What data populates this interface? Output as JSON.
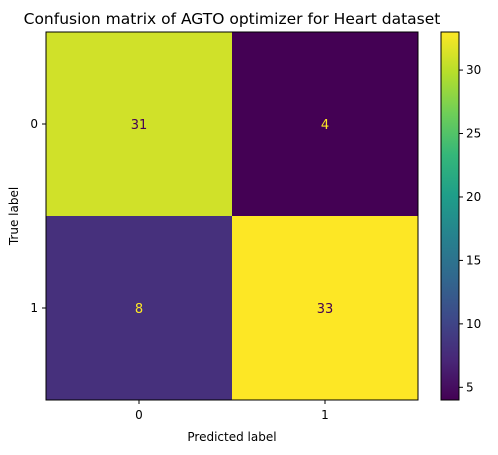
{
  "chart_data": {
    "type": "heatmap",
    "title": "Confusion matrix of AGTO optimizer for Heart dataset",
    "xlabel": "Predicted label",
    "ylabel": "True label",
    "x_categories": [
      "0",
      "1"
    ],
    "y_categories": [
      "0",
      "1"
    ],
    "matrix": [
      [
        31,
        4
      ],
      [
        8,
        33
      ]
    ],
    "colormap": "viridis",
    "colorbar": {
      "range": [
        4,
        33
      ],
      "ticks": [
        5,
        10,
        15,
        20,
        25,
        30
      ]
    },
    "grid": false,
    "colors": {
      "low": "#440154",
      "high": "#fde725",
      "text_on_dark": "#fde725",
      "text_on_light": "#440154"
    }
  }
}
